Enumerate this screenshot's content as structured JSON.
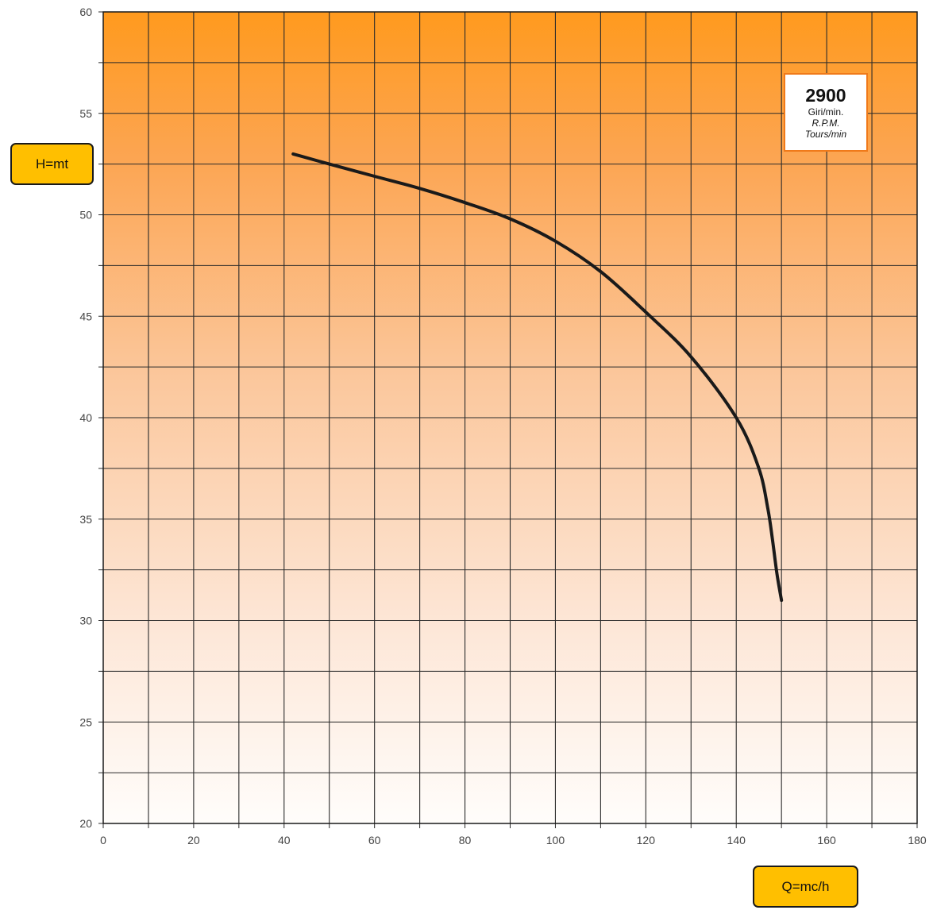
{
  "chart_data": {
    "type": "line",
    "xlabel": "Q=mc/h",
    "ylabel": "H=mt",
    "xlim": [
      0,
      180
    ],
    "ylim": [
      20,
      60
    ],
    "x_ticks": [
      0,
      20,
      40,
      60,
      80,
      100,
      120,
      140,
      160,
      180
    ],
    "y_ticks": [
      20,
      25,
      30,
      35,
      40,
      45,
      50,
      55,
      60
    ],
    "grid": true,
    "series": [
      {
        "x": [
          42,
          50,
          60,
          70,
          80,
          90,
          100,
          110,
          120,
          130,
          140,
          145,
          147,
          148,
          149,
          150
        ],
        "y": [
          53.0,
          52.5,
          51.9,
          51.3,
          50.6,
          49.8,
          48.7,
          47.2,
          45.2,
          43.0,
          40.0,
          37.5,
          35.5,
          34.0,
          32.3,
          31.0
        ]
      }
    ],
    "annotation": {
      "value": "2900",
      "lines": [
        "Giri/min.",
        "R.P.M.",
        "Tours/min"
      ]
    }
  },
  "colors": {
    "background_top": "#ff9a1e",
    "background_bottom": "#fffdfb",
    "badge_fill": "#ffbf00",
    "annotation_border": "#f07a1a",
    "curve": "#1a1a1a",
    "grid": "#2b2b2b"
  }
}
